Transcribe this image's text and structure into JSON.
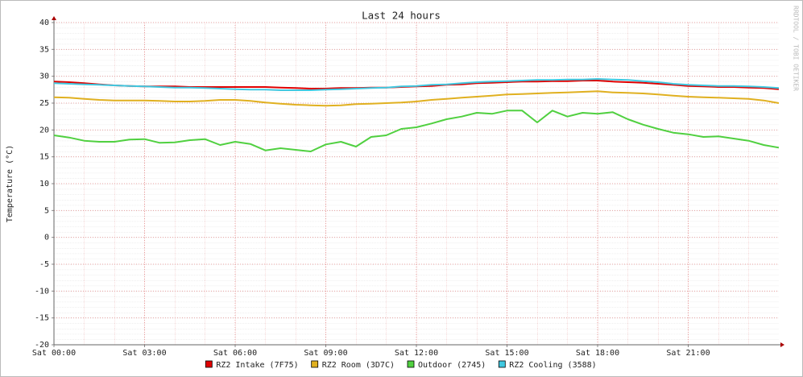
{
  "chart_data": {
    "type": "line",
    "title": "Last 24 hours",
    "y_label": "Temperature (°C)",
    "watermark": "RRDTOOL / TOBI OETIKER",
    "x": [
      0,
      0.5,
      1,
      1.5,
      2,
      2.5,
      3,
      3.5,
      4,
      4.5,
      5,
      5.5,
      6,
      6.5,
      7,
      7.5,
      8,
      8.5,
      9,
      9.5,
      10,
      10.5,
      11,
      11.5,
      12,
      12.5,
      13,
      13.5,
      14,
      14.5,
      15,
      15.5,
      16,
      16.5,
      17,
      17.5,
      18,
      18.5,
      19,
      19.5,
      20,
      20.5,
      21,
      21.5,
      22,
      22.5,
      23,
      23.5,
      24
    ],
    "xlim": [
      0,
      24
    ],
    "xticks": [
      {
        "value": 0,
        "label": "Sat 00:00"
      },
      {
        "value": 3,
        "label": "Sat 03:00"
      },
      {
        "value": 6,
        "label": "Sat 06:00"
      },
      {
        "value": 9,
        "label": "Sat 09:00"
      },
      {
        "value": 12,
        "label": "Sat 12:00"
      },
      {
        "value": 15,
        "label": "Sat 15:00"
      },
      {
        "value": 18,
        "label": "Sat 18:00"
      },
      {
        "value": 21,
        "label": "Sat 21:00"
      }
    ],
    "ylim": [
      -20,
      40
    ],
    "yticks": [
      -20,
      -15,
      -10,
      -5,
      0,
      5,
      10,
      15,
      20,
      25,
      30,
      35,
      40
    ],
    "grid": true,
    "legend": "bottom",
    "series": [
      {
        "name": "RZ2 Intake (7F75)",
        "color": "#e00000",
        "values": [
          29.0,
          28.9,
          28.7,
          28.5,
          28.3,
          28.2,
          28.1,
          28.1,
          28.1,
          28.0,
          28.0,
          28.0,
          28.0,
          28.0,
          28.0,
          27.9,
          27.8,
          27.7,
          27.7,
          27.8,
          27.8,
          27.9,
          27.9,
          28.0,
          28.1,
          28.2,
          28.4,
          28.5,
          28.7,
          28.8,
          28.9,
          29.0,
          29.0,
          29.1,
          29.1,
          29.2,
          29.2,
          29.0,
          28.9,
          28.8,
          28.6,
          28.4,
          28.2,
          28.1,
          28.0,
          28.0,
          27.9,
          27.8,
          27.6
        ]
      },
      {
        "name": "RZ2 Room (3D7C)",
        "color": "#e0b020",
        "values": [
          26.1,
          26.0,
          25.8,
          25.6,
          25.5,
          25.5,
          25.5,
          25.4,
          25.3,
          25.3,
          25.4,
          25.6,
          25.6,
          25.4,
          25.1,
          24.9,
          24.7,
          24.6,
          24.5,
          24.6,
          24.8,
          24.9,
          25.0,
          25.1,
          25.3,
          25.6,
          25.8,
          26.0,
          26.2,
          26.4,
          26.6,
          26.7,
          26.8,
          26.9,
          27.0,
          27.1,
          27.2,
          27.0,
          26.9,
          26.8,
          26.6,
          26.4,
          26.2,
          26.1,
          26.0,
          25.9,
          25.8,
          25.5,
          25.0
        ]
      },
      {
        "name": "Outdoor (2745)",
        "color": "#50d040",
        "values": [
          19.0,
          18.6,
          18.0,
          17.8,
          17.8,
          18.2,
          18.3,
          17.6,
          17.7,
          18.1,
          18.3,
          17.2,
          17.8,
          17.4,
          16.2,
          16.6,
          16.3,
          16.0,
          17.3,
          17.8,
          16.9,
          18.7,
          19.0,
          20.2,
          20.5,
          21.2,
          22.0,
          22.5,
          23.2,
          23.0,
          23.6,
          23.6,
          21.4,
          23.6,
          22.5,
          23.2,
          23.0,
          23.3,
          22.0,
          21.0,
          20.2,
          19.5,
          19.2,
          18.7,
          18.8,
          18.4,
          18.0,
          17.2,
          16.7
        ]
      },
      {
        "name": "RZ2 Cooling (3588)",
        "color": "#40c8e0",
        "values": [
          28.7,
          28.6,
          28.5,
          28.4,
          28.3,
          28.2,
          28.1,
          28.0,
          27.9,
          27.9,
          27.8,
          27.7,
          27.6,
          27.5,
          27.5,
          27.4,
          27.4,
          27.4,
          27.5,
          27.6,
          27.7,
          27.8,
          27.9,
          28.1,
          28.2,
          28.4,
          28.5,
          28.7,
          28.9,
          29.0,
          29.1,
          29.2,
          29.3,
          29.3,
          29.4,
          29.4,
          29.5,
          29.4,
          29.3,
          29.1,
          28.9,
          28.6,
          28.4,
          28.3,
          28.2,
          28.2,
          28.1,
          28.0,
          27.8
        ]
      }
    ]
  }
}
